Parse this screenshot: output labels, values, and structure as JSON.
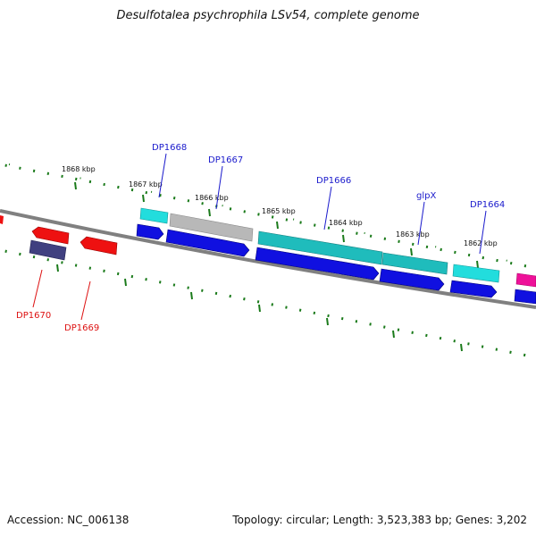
{
  "title": "Desulfotalea psychrophila LSv54, complete genome",
  "footer": {
    "accession": "Accession: NC_006138",
    "summary": "Topology: circular; Length: 3,523,383 bp; Genes: 3,202"
  },
  "scale": {
    "unit": "kbp",
    "labels": [
      "1868 kbp",
      "1867 kbp",
      "1866 kbp",
      "1865 kbp",
      "1864 kbp",
      "1863 kbp",
      "1862 kbp"
    ]
  },
  "colors": {
    "backbone": "#808080",
    "tick": "#1a7a1a",
    "forward_label": "#1a1acc",
    "reverse_label": "#dd1111",
    "blue_cds": "#1010e0",
    "cyan_cds": "#22dddd",
    "teal_cds": "#1fbcbc",
    "grey_cds": "#b8b8b8",
    "red_cds": "#ee1111",
    "navy_cds": "#404080",
    "magenta_cds": "#ee1199"
  },
  "genes": [
    {
      "name": "DP1668",
      "strand": "forward"
    },
    {
      "name": "DP1667",
      "strand": "forward"
    },
    {
      "name": "DP1666",
      "strand": "forward"
    },
    {
      "name": "glpX",
      "strand": "forward"
    },
    {
      "name": "DP1664",
      "strand": "forward"
    },
    {
      "name": "DP1670",
      "strand": "reverse"
    },
    {
      "name": "DP1669",
      "strand": "reverse"
    }
  ]
}
